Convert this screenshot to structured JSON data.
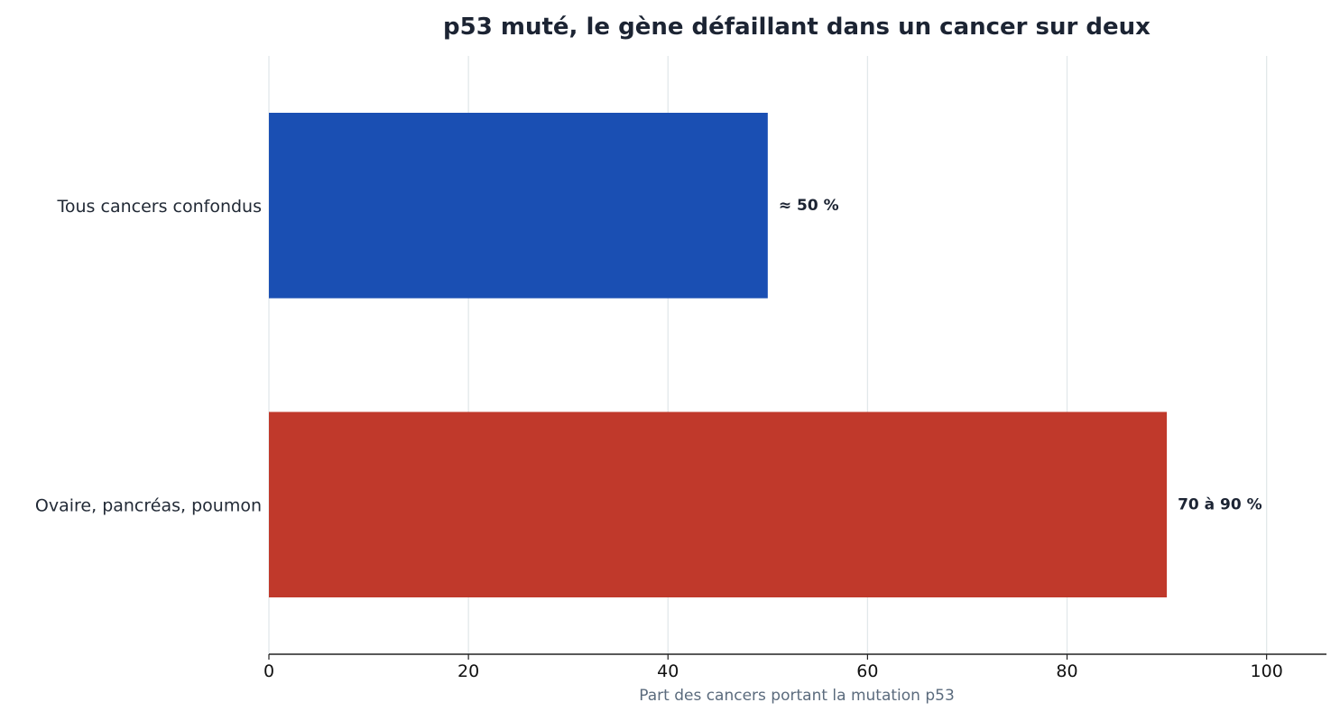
{
  "chart_data": {
    "type": "bar",
    "orientation": "horizontal",
    "title": "p53 muté, le gène défaillant dans un cancer sur deux",
    "xlabel": "Part des cancers portant la mutation p53",
    "ylabel": "",
    "xlim": [
      0,
      106
    ],
    "x_ticks": [
      0,
      20,
      40,
      60,
      80,
      100
    ],
    "grid": "vertical",
    "categories": [
      "Tous cancers confondus",
      "Ovaire, pancréas, poumon"
    ],
    "values": [
      50,
      90
    ],
    "data_labels": [
      "≈ 50 %",
      "70 à 90 %"
    ],
    "colors": [
      "#1a4fb3",
      "#c0392b"
    ]
  }
}
